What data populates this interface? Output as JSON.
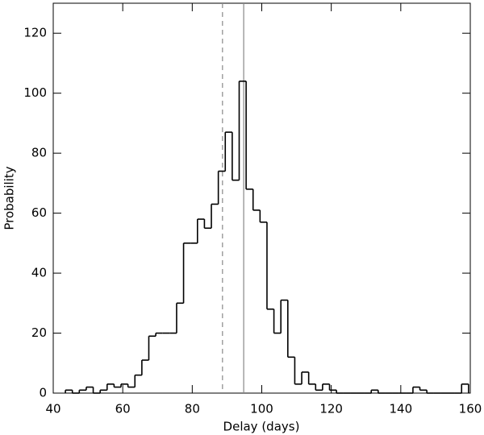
{
  "chart_data": {
    "type": "histogram",
    "xlabel": "Delay (days)",
    "ylabel": "Probability",
    "bins": [
      43.5,
      45.5,
      47.5,
      49.5,
      51.5,
      53.5,
      55.5,
      57.5,
      59.5,
      61.5,
      63.5,
      65.5,
      67.5,
      69.5,
      71.5,
      73.5,
      75.5,
      77.5,
      79.5,
      81.5,
      83.5,
      85.5,
      87.5,
      89.5,
      91.5,
      93.5,
      95.5,
      97.5,
      99.5,
      101.5,
      103.5,
      105.5,
      107.5,
      109.5,
      111.5,
      113.5,
      115.5,
      117.5,
      119.5,
      121.5,
      123.5,
      125.5,
      127.5,
      129.5,
      131.5,
      133.5,
      135.5,
      137.5,
      139.5,
      141.5,
      143.5,
      145.5,
      147.5,
      149.5,
      151.5,
      153.5,
      155.5,
      157.5,
      159.5
    ],
    "counts": [
      1,
      0,
      1,
      2,
      0,
      1,
      3,
      2,
      3,
      2,
      6,
      11,
      19,
      20,
      20,
      20,
      30,
      50,
      50,
      58,
      55,
      63,
      74,
      87,
      71,
      104,
      68,
      61,
      57,
      28,
      20,
      31,
      12,
      3,
      7,
      3,
      1,
      3,
      1,
      0,
      0,
      0,
      0,
      0,
      1,
      0,
      0,
      0,
      0,
      0,
      2,
      1,
      0,
      0,
      0,
      0,
      0,
      3
    ],
    "color": "#000000",
    "reference_lines": [
      {
        "value": 88.7,
        "dashed": true,
        "color": "#888888"
      },
      {
        "value": 94.8,
        "dashed": false,
        "color": "#888888"
      }
    ],
    "xlim": [
      40,
      160
    ],
    "xticks": [
      40,
      60,
      80,
      100,
      120,
      140,
      160
    ],
    "ylim": [
      0,
      130
    ],
    "yticks": [
      0,
      20,
      40,
      60,
      80,
      100,
      120
    ]
  }
}
